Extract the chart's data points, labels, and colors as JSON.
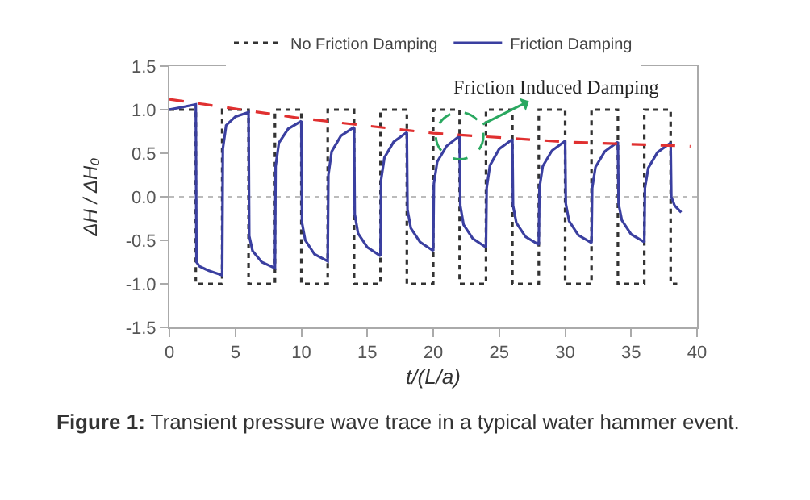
{
  "chart_data": {
    "type": "line",
    "xlabel": "t/(L/a)",
    "ylabel": "ΔH / ΔH₀",
    "xlim": [
      0,
      40
    ],
    "xticks": [
      0,
      5,
      10,
      15,
      20,
      25,
      30,
      35,
      40
    ],
    "ylim": [
      -1.5,
      1.5
    ],
    "yticks": [
      -1.5,
      {
        "value": -1,
        "label": "-1.0"
      },
      -0.5,
      {
        "value": 0,
        "label": "0.0"
      },
      0.5,
      {
        "value": 1,
        "label": "1.0"
      },
      1.5
    ],
    "grid": false,
    "legend": "top",
    "marker": "none",
    "series": [
      {
        "name": "No Friction Damping",
        "color": "#333333",
        "line_style": "dotted",
        "x": [
          0,
          2,
          2,
          4,
          4,
          6,
          6,
          8,
          8,
          10,
          10,
          12,
          12,
          14,
          14,
          16,
          16,
          18,
          18,
          20,
          20,
          22,
          22,
          24,
          24,
          26,
          26,
          28,
          28,
          30,
          30,
          32,
          32,
          34,
          34,
          36,
          36,
          38,
          38,
          38.5
        ],
        "values": [
          1,
          1,
          -1,
          -1,
          1,
          1,
          -1,
          -1,
          1,
          1,
          -1,
          -1,
          1,
          1,
          -1,
          -1,
          1,
          1,
          -1,
          -1,
          1,
          1,
          -1,
          -1,
          1,
          1,
          -1,
          -1,
          1,
          1,
          -1,
          -1,
          1,
          1,
          -1,
          -1,
          1,
          1,
          -1,
          -1
        ]
      },
      {
        "name": "Friction Damping",
        "color": "#3a3fa0",
        "line_style": "solid",
        "x": [
          0,
          1,
          2,
          2.05,
          2.3,
          3,
          4,
          4.05,
          4.3,
          5,
          6,
          6.05,
          6.3,
          7,
          8,
          8.05,
          8.3,
          9,
          10,
          10.05,
          10.3,
          11,
          12,
          12.05,
          12.3,
          13,
          14,
          14.05,
          14.3,
          15,
          16,
          16.05,
          16.3,
          17,
          18,
          18.05,
          18.3,
          19,
          20,
          20.05,
          20.3,
          21,
          22,
          22.05,
          22.3,
          23,
          24,
          24.05,
          24.3,
          25,
          26,
          26.05,
          26.3,
          27,
          28,
          28.05,
          28.3,
          29,
          30,
          30.05,
          30.3,
          31,
          32,
          32.05,
          32.3,
          33,
          34,
          34.05,
          34.3,
          35,
          36,
          36.05,
          36.3,
          37,
          38,
          38.05,
          38.3,
          38.8
        ],
        "values": [
          1.0,
          1.03,
          1.06,
          -0.75,
          -0.8,
          -0.85,
          -0.9,
          0.55,
          0.82,
          0.92,
          0.97,
          -0.45,
          -0.62,
          -0.75,
          -0.82,
          0.35,
          0.62,
          0.78,
          0.87,
          -0.3,
          -0.5,
          -0.66,
          -0.74,
          0.25,
          0.52,
          0.7,
          0.8,
          -0.2,
          -0.42,
          -0.58,
          -0.68,
          0.2,
          0.45,
          0.63,
          0.74,
          -0.15,
          -0.36,
          -0.52,
          -0.62,
          0.15,
          0.4,
          0.58,
          0.7,
          -0.1,
          -0.32,
          -0.48,
          -0.58,
          0.1,
          0.36,
          0.55,
          0.66,
          -0.1,
          -0.3,
          -0.46,
          -0.55,
          0.1,
          0.35,
          0.53,
          0.64,
          -0.08,
          -0.28,
          -0.44,
          -0.53,
          0.1,
          0.34,
          0.52,
          0.63,
          -0.08,
          -0.27,
          -0.43,
          -0.52,
          0.1,
          0.33,
          0.51,
          0.62,
          0.0,
          -0.1,
          -0.18
        ]
      },
      {
        "color": "#e03030",
        "line_style": "dashed",
        "x": [
          0,
          10,
          20,
          30,
          39.5
        ],
        "values": [
          1.12,
          0.9,
          0.73,
          0.63,
          0.58
        ]
      }
    ],
    "ref_lines": [
      {
        "axis": "y",
        "value": 0,
        "color": "#bbbbbb",
        "line_style": "dotted"
      }
    ],
    "annotations": [
      {
        "text": "Friction Induced Damping",
        "x": 22,
        "y": 0.7
      },
      "Figure 1: Transient pressure wave trace in a typical water hammer event."
    ]
  }
}
